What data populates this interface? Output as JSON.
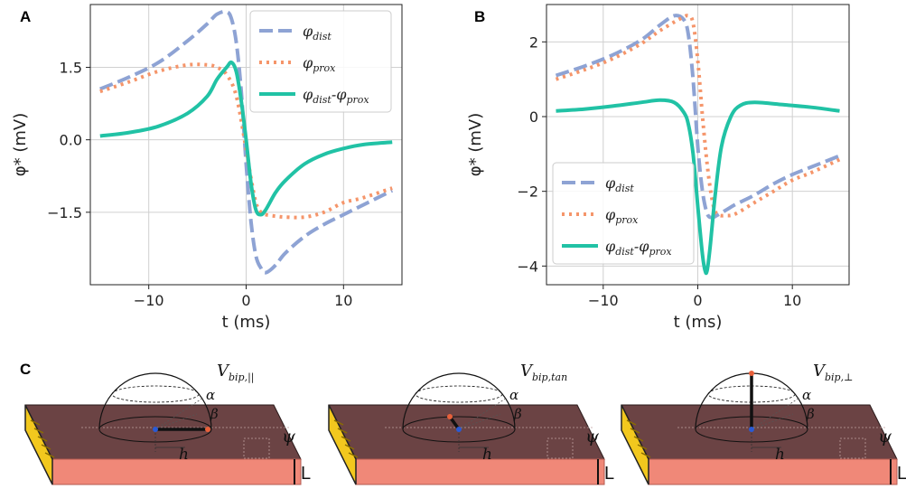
{
  "colors": {
    "dist": "#8ea3d4",
    "prox": "#f5956a",
    "diff": "#21c2a5",
    "grid": "#d0d0d0"
  },
  "chart_data": [
    {
      "panel": "A",
      "type": "line",
      "xlabel": "t (ms)",
      "ylabel": "φ* (mV)",
      "xlim": [
        -16,
        16
      ],
      "ylim": [
        -3.0,
        2.8
      ],
      "xticks": [
        -10,
        0,
        10
      ],
      "xtick_labels": [
        "−10",
        "0",
        "10"
      ],
      "yticks": [
        1.5,
        0.0,
        -1.5
      ],
      "ytick_labels": [
        "1.5",
        "0.0",
        "−1.5"
      ],
      "grid": true,
      "legend_position": "top-right",
      "series": [
        {
          "name": "φdist",
          "label_main": "φ",
          "label_sub": "dist",
          "style": "dashed",
          "color_key": "dist",
          "x": [
            -15,
            -12,
            -9,
            -6,
            -4,
            -3,
            -2,
            -1.5,
            -1,
            -0.5,
            0,
            0.5,
            1,
            1.5,
            2,
            3,
            4,
            6,
            8,
            10,
            12,
            15
          ],
          "y": [
            1.05,
            1.3,
            1.6,
            2.05,
            2.4,
            2.6,
            2.65,
            2.5,
            2.0,
            1.0,
            -0.5,
            -1.7,
            -2.4,
            -2.65,
            -2.75,
            -2.6,
            -2.35,
            -2.0,
            -1.75,
            -1.55,
            -1.35,
            -1.05
          ]
        },
        {
          "name": "φprox",
          "label_main": "φ",
          "label_sub": "prox",
          "style": "dotted",
          "color_key": "prox",
          "x": [
            -15,
            -12,
            -9,
            -6,
            -4,
            -3,
            -2,
            -1,
            0,
            0.5,
            1,
            1.5,
            2,
            3,
            4,
            6,
            8,
            10,
            12,
            15
          ],
          "y": [
            1.0,
            1.2,
            1.42,
            1.55,
            1.55,
            1.5,
            1.35,
            0.9,
            -0.2,
            -0.8,
            -1.3,
            -1.5,
            -1.55,
            -1.58,
            -1.6,
            -1.6,
            -1.5,
            -1.3,
            -1.2,
            -1.0
          ]
        },
        {
          "name": "φdist-φprox",
          "label_main": "φ",
          "label_sub": "dist",
          "label_mid": "-φ",
          "label_sub2": "prox",
          "style": "solid",
          "color_key": "diff",
          "x": [
            -15,
            -12,
            -9,
            -6,
            -4,
            -3,
            -2,
            -1.5,
            -1,
            -0.5,
            0,
            0.5,
            1,
            1.5,
            2,
            3,
            4,
            6,
            8,
            10,
            12,
            15
          ],
          "y": [
            0.08,
            0.15,
            0.28,
            0.55,
            0.9,
            1.25,
            1.5,
            1.6,
            1.4,
            0.8,
            0.0,
            -0.9,
            -1.45,
            -1.55,
            -1.45,
            -1.1,
            -0.85,
            -0.5,
            -0.3,
            -0.18,
            -0.1,
            -0.05
          ]
        }
      ]
    },
    {
      "panel": "B",
      "type": "line",
      "xlabel": "t (ms)",
      "ylabel": "φ* (mV)",
      "xlim": [
        -16,
        16
      ],
      "ylim": [
        -4.5,
        3.0
      ],
      "xticks": [
        -10,
        0,
        10
      ],
      "xtick_labels": [
        "−10",
        "0",
        "10"
      ],
      "yticks": [
        2,
        0,
        -2,
        -4
      ],
      "ytick_labels": [
        "2",
        "0",
        "−2",
        "−4"
      ],
      "grid": true,
      "legend_position": "bottom-left",
      "series": [
        {
          "name": "φdist",
          "label_main": "φ",
          "label_sub": "dist",
          "style": "dashed",
          "color_key": "dist",
          "x": [
            -15,
            -12,
            -9,
            -6,
            -4,
            -2.5,
            -1.5,
            -1,
            -0.5,
            0,
            0.5,
            1,
            1.5,
            2,
            3,
            4,
            6,
            8,
            10,
            12,
            15
          ],
          "y": [
            1.1,
            1.35,
            1.65,
            2.05,
            2.45,
            2.7,
            2.6,
            2.2,
            1.0,
            -0.8,
            -2.0,
            -2.6,
            -2.7,
            -2.65,
            -2.5,
            -2.35,
            -2.1,
            -1.8,
            -1.55,
            -1.35,
            -1.05
          ]
        },
        {
          "name": "φprox",
          "label_main": "φ",
          "label_sub": "prox",
          "style": "dotted",
          "color_key": "prox",
          "x": [
            -15,
            -12,
            -9,
            -6,
            -4,
            -2,
            -1,
            -0.5,
            0,
            0.5,
            1,
            1.5,
            2,
            3,
            4,
            6,
            8,
            10,
            12,
            15
          ],
          "y": [
            1.0,
            1.25,
            1.55,
            1.95,
            2.3,
            2.6,
            2.7,
            2.5,
            1.5,
            0.0,
            -1.3,
            -2.2,
            -2.6,
            -2.65,
            -2.6,
            -2.3,
            -2.0,
            -1.7,
            -1.5,
            -1.15
          ]
        },
        {
          "name": "φdist-φprox",
          "label_main": "φ",
          "label_sub": "dist",
          "label_mid": "-φ",
          "label_sub2": "prox",
          "style": "solid",
          "color_key": "diff",
          "x": [
            -15,
            -12,
            -9,
            -6,
            -4,
            -2.5,
            -1.5,
            -1,
            -0.5,
            0,
            0.5,
            0.8,
            1,
            1.3,
            1.8,
            2.5,
            3.5,
            4.5,
            6,
            9,
            12,
            15
          ],
          "y": [
            0.15,
            0.2,
            0.28,
            0.38,
            0.44,
            0.38,
            0.12,
            -0.2,
            -1.0,
            -2.4,
            -3.7,
            -4.15,
            -4.1,
            -3.5,
            -2.2,
            -0.8,
            0.0,
            0.3,
            0.38,
            0.32,
            0.25,
            0.15
          ]
        }
      ]
    }
  ],
  "panel_c": {
    "label": "C",
    "dipoles": [
      {
        "v_main": "V",
        "v_sub": "bip,||",
        "alpha": "α",
        "beta": "β",
        "h": "h",
        "psi": "ψ",
        "L": "L"
      },
      {
        "v_main": "V",
        "v_sub": "bip,tan",
        "alpha": "α",
        "beta": "β",
        "h": "h",
        "psi": "ψ",
        "L": "L"
      },
      {
        "v_main": "V",
        "v_sub": "bip,⊥",
        "alpha": "α",
        "beta": "β",
        "h": "h",
        "psi": "ψ",
        "L": "L"
      }
    ]
  }
}
